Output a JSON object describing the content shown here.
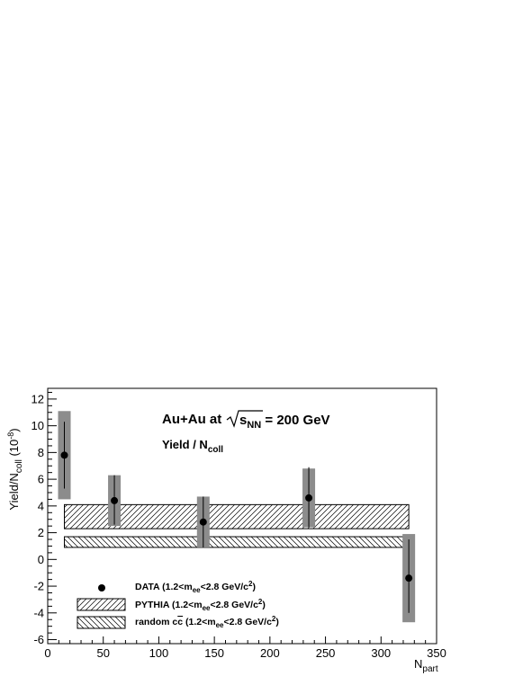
{
  "chart_data": {
    "type": "scatter",
    "xlabel": "N",
    "xlabel_sub": "part",
    "ylabel_parts": {
      "a": "Yield/N",
      "a_sub": "coll",
      "b": " (10",
      "b_sup": "-8",
      "c": ")"
    },
    "xlim": [
      0,
      350
    ],
    "ylim": [
      -6.3,
      12.8
    ],
    "x_ticks": [
      0,
      50,
      100,
      150,
      200,
      250,
      300,
      350
    ],
    "y_ticks": [
      -6,
      -4,
      -2,
      0,
      2,
      4,
      6,
      8,
      10,
      12
    ],
    "grid": false,
    "legend_position": "bottom-left",
    "annotations": {
      "system": "Au+Au at",
      "sqrt_s": "s",
      "sqrt_sub": "NN",
      "energy": " = 200 GeV",
      "quantity": "Yield / N",
      "quantity_sub": "coll"
    },
    "series": [
      {
        "name": "DATA",
        "legend_label": {
          "a": "DATA (1.2<m",
          "sub": "ee",
          "b": "<2.8 GeV/c",
          "sup": "2",
          "c": ")"
        },
        "marker": "circle",
        "points": [
          {
            "x": 15,
            "y": 7.8,
            "stat_low": 5.3,
            "stat_high": 10.3,
            "sys_low": 4.5,
            "sys_high": 11.1
          },
          {
            "x": 60,
            "y": 4.4,
            "stat_low": 2.6,
            "stat_high": 6.3,
            "sys_low": 2.5,
            "sys_high": 6.3
          },
          {
            "x": 140,
            "y": 2.8,
            "stat_low": 0.9,
            "stat_high": 4.7,
            "sys_low": 0.9,
            "sys_high": 4.7
          },
          {
            "x": 235,
            "y": 4.6,
            "stat_low": 2.4,
            "stat_high": 6.9,
            "sys_low": 2.4,
            "sys_high": 6.8
          },
          {
            "x": 325,
            "y": -1.4,
            "stat_low": -4.0,
            "stat_high": 1.5,
            "sys_low": -4.7,
            "sys_high": 1.9
          }
        ]
      },
      {
        "name": "PYTHIA",
        "legend_label": {
          "a": "PYTHIA (1.2<m",
          "sub": "ee",
          "b": "<2.8 GeV/c",
          "sup": "2",
          "c": ")"
        },
        "band": {
          "x_from": 15,
          "x_to": 325,
          "y_low": 2.3,
          "y_high": 4.1
        },
        "hatch": "forward"
      },
      {
        "name": "random c̅c",
        "legend_label": {
          "a": "random c",
          "bar": "c",
          "b": " (1.2<m",
          "sub": "ee",
          "c": "<2.8 GeV/c",
          "sup": "2",
          "d": ")"
        },
        "band": {
          "x_from": 15,
          "x_to": 325,
          "y_low": 0.9,
          "y_high": 1.7
        },
        "hatch": "backward"
      }
    ],
    "colors": {
      "data_marker": "#000000",
      "sys_box": "#8c8c8c",
      "axis": "#000000",
      "hatch": "#000000"
    }
  }
}
